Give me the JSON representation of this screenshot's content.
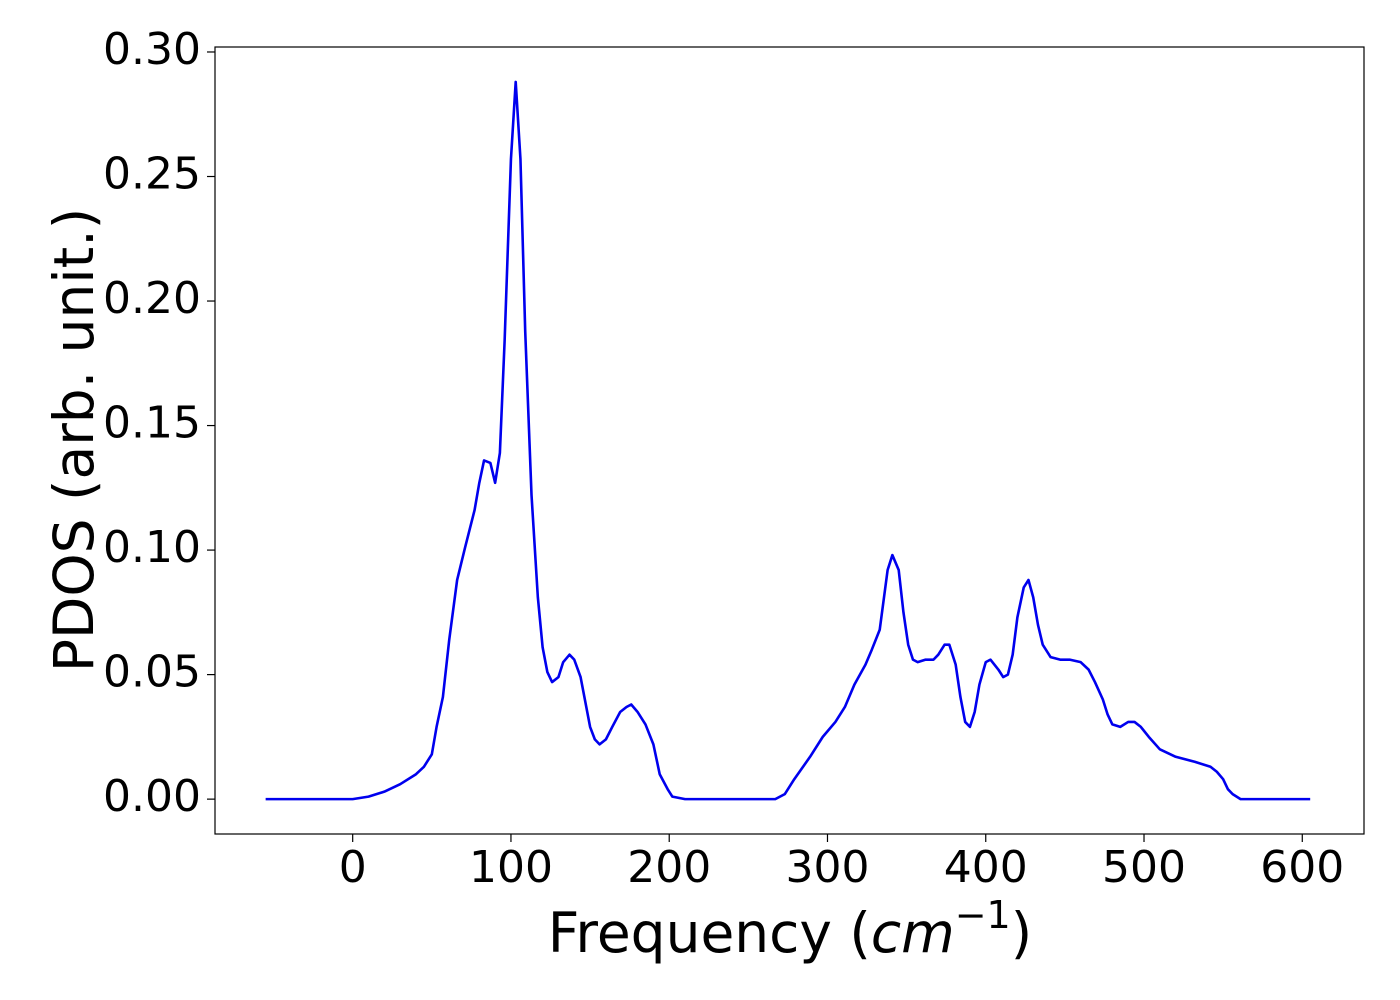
{
  "chart_data": {
    "type": "line",
    "xlabel": [
      "Frequency (",
      "cm",
      "−1",
      ")"
    ],
    "ylabel": "PDOS (arb. unit.)",
    "xlim": [
      -87,
      639
    ],
    "ylim": [
      -0.014,
      0.302
    ],
    "xticks": [
      0,
      100,
      200,
      300,
      400,
      500,
      600
    ],
    "yticks": [
      {
        "value": 0,
        "label": "0.00"
      },
      {
        "value": 0.05,
        "label": "0.05"
      },
      {
        "value": 0.1,
        "label": "0.10"
      },
      {
        "value": 0.15,
        "label": "0.15"
      },
      {
        "value": 0.2,
        "label": "0.20"
      },
      {
        "value": 0.25,
        "label": "0.25"
      },
      {
        "value": 0.3,
        "label": "0.30"
      }
    ],
    "grid": false,
    "series": [
      {
        "color": "#0000ee",
        "x": [
          -55,
          0,
          10,
          20,
          30,
          40,
          45,
          50,
          53,
          57,
          61,
          66,
          71,
          77,
          80,
          83,
          87,
          90,
          93,
          96,
          100,
          103,
          106,
          109,
          113,
          117,
          120,
          123,
          126,
          130,
          133,
          137,
          140,
          144,
          147,
          150,
          153,
          156,
          160,
          164,
          169,
          173,
          176,
          180,
          185,
          190,
          194,
          199,
          202,
          210,
          260,
          267,
          273,
          279,
          289,
          297,
          305,
          311,
          317,
          324,
          328,
          333,
          338,
          341,
          345,
          348,
          351,
          354,
          357,
          362,
          367,
          370,
          374,
          377,
          381,
          384,
          387,
          390,
          393,
          396,
          400,
          403,
          408,
          411,
          414,
          417,
          420,
          424,
          427,
          430,
          433,
          436,
          441,
          447,
          453,
          460,
          465,
          469,
          474,
          477,
          480,
          485,
          490,
          494,
          498,
          503,
          510,
          520,
          532,
          542,
          546,
          550,
          553,
          556,
          561,
          605
        ],
        "values": [
          0,
          0,
          0.001,
          0.003,
          0.006,
          0.01,
          0.013,
          0.018,
          0.029,
          0.041,
          0.064,
          0.088,
          0.101,
          0.116,
          0.127,
          0.136,
          0.135,
          0.127,
          0.139,
          0.184,
          0.257,
          0.288,
          0.257,
          0.188,
          0.122,
          0.081,
          0.061,
          0.051,
          0.047,
          0.049,
          0.055,
          0.058,
          0.056,
          0.049,
          0.039,
          0.029,
          0.024,
          0.022,
          0.024,
          0.029,
          0.035,
          0.037,
          0.038,
          0.035,
          0.03,
          0.022,
          0.01,
          0.004,
          0.001,
          0,
          0,
          0,
          0.002,
          0.008,
          0.017,
          0.025,
          0.031,
          0.037,
          0.046,
          0.054,
          0.06,
          0.068,
          0.092,
          0.098,
          0.092,
          0.075,
          0.062,
          0.056,
          0.055,
          0.056,
          0.056,
          0.058,
          0.062,
          0.062,
          0.054,
          0.041,
          0.031,
          0.029,
          0.035,
          0.046,
          0.055,
          0.056,
          0.052,
          0.049,
          0.05,
          0.058,
          0.073,
          0.085,
          0.088,
          0.081,
          0.07,
          0.062,
          0.057,
          0.056,
          0.056,
          0.055,
          0.052,
          0.047,
          0.04,
          0.034,
          0.03,
          0.029,
          0.031,
          0.031,
          0.029,
          0.025,
          0.02,
          0.017,
          0.015,
          0.013,
          0.011,
          0.008,
          0.004,
          0.002,
          0,
          0
        ]
      }
    ]
  }
}
